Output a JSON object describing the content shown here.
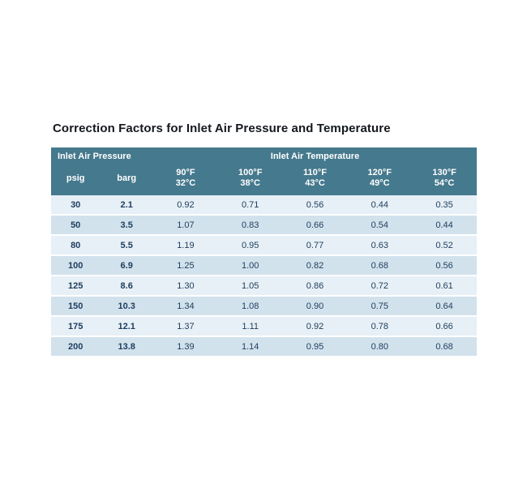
{
  "page": {
    "title": "Correction Factors for Inlet Air Pressure and Temperature"
  },
  "table": {
    "group_headers": [
      {
        "label": "Inlet Air Pressure",
        "span": 2
      },
      {
        "label": "Inlet Air Temperature",
        "span": 5
      }
    ],
    "pressure_columns": [
      "psig",
      "barg"
    ],
    "temperature_columns": [
      {
        "f": "90°F",
        "c": "32°C"
      },
      {
        "f": "100°F",
        "c": "38°C"
      },
      {
        "f": "110°F",
        "c": "43°C"
      },
      {
        "f": "120°F",
        "c": "49°C"
      },
      {
        "f": "130°F",
        "c": "54°C"
      }
    ],
    "rows": [
      {
        "psig": "30",
        "barg": "2.1",
        "factors": [
          "0.92",
          "0.71",
          "0.56",
          "0.44",
          "0.35"
        ]
      },
      {
        "psig": "50",
        "barg": "3.5",
        "factors": [
          "1.07",
          "0.83",
          "0.66",
          "0.54",
          "0.44"
        ]
      },
      {
        "psig": "80",
        "barg": "5.5",
        "factors": [
          "1.19",
          "0.95",
          "0.77",
          "0.63",
          "0.52"
        ]
      },
      {
        "psig": "100",
        "barg": "6.9",
        "factors": [
          "1.25",
          "1.00",
          "0.82",
          "0.68",
          "0.56"
        ]
      },
      {
        "psig": "125",
        "barg": "8.6",
        "factors": [
          "1.30",
          "1.05",
          "0.86",
          "0.72",
          "0.61"
        ]
      },
      {
        "psig": "150",
        "barg": "10.3",
        "factors": [
          "1.34",
          "1.08",
          "0.90",
          "0.75",
          "0.64"
        ]
      },
      {
        "psig": "175",
        "barg": "12.1",
        "factors": [
          "1.37",
          "1.11",
          "0.92",
          "0.78",
          "0.66"
        ]
      },
      {
        "psig": "200",
        "barg": "13.8",
        "factors": [
          "1.39",
          "1.14",
          "0.95",
          "0.80",
          "0.68"
        ]
      }
    ]
  },
  "colors": {
    "header_bg": "#45798d",
    "header_text": "#ffffff",
    "row_light": "#e7f0f6",
    "row_dark": "#d2e2ed",
    "cell_text": "#1d3c5c",
    "title_text": "#14181d"
  }
}
